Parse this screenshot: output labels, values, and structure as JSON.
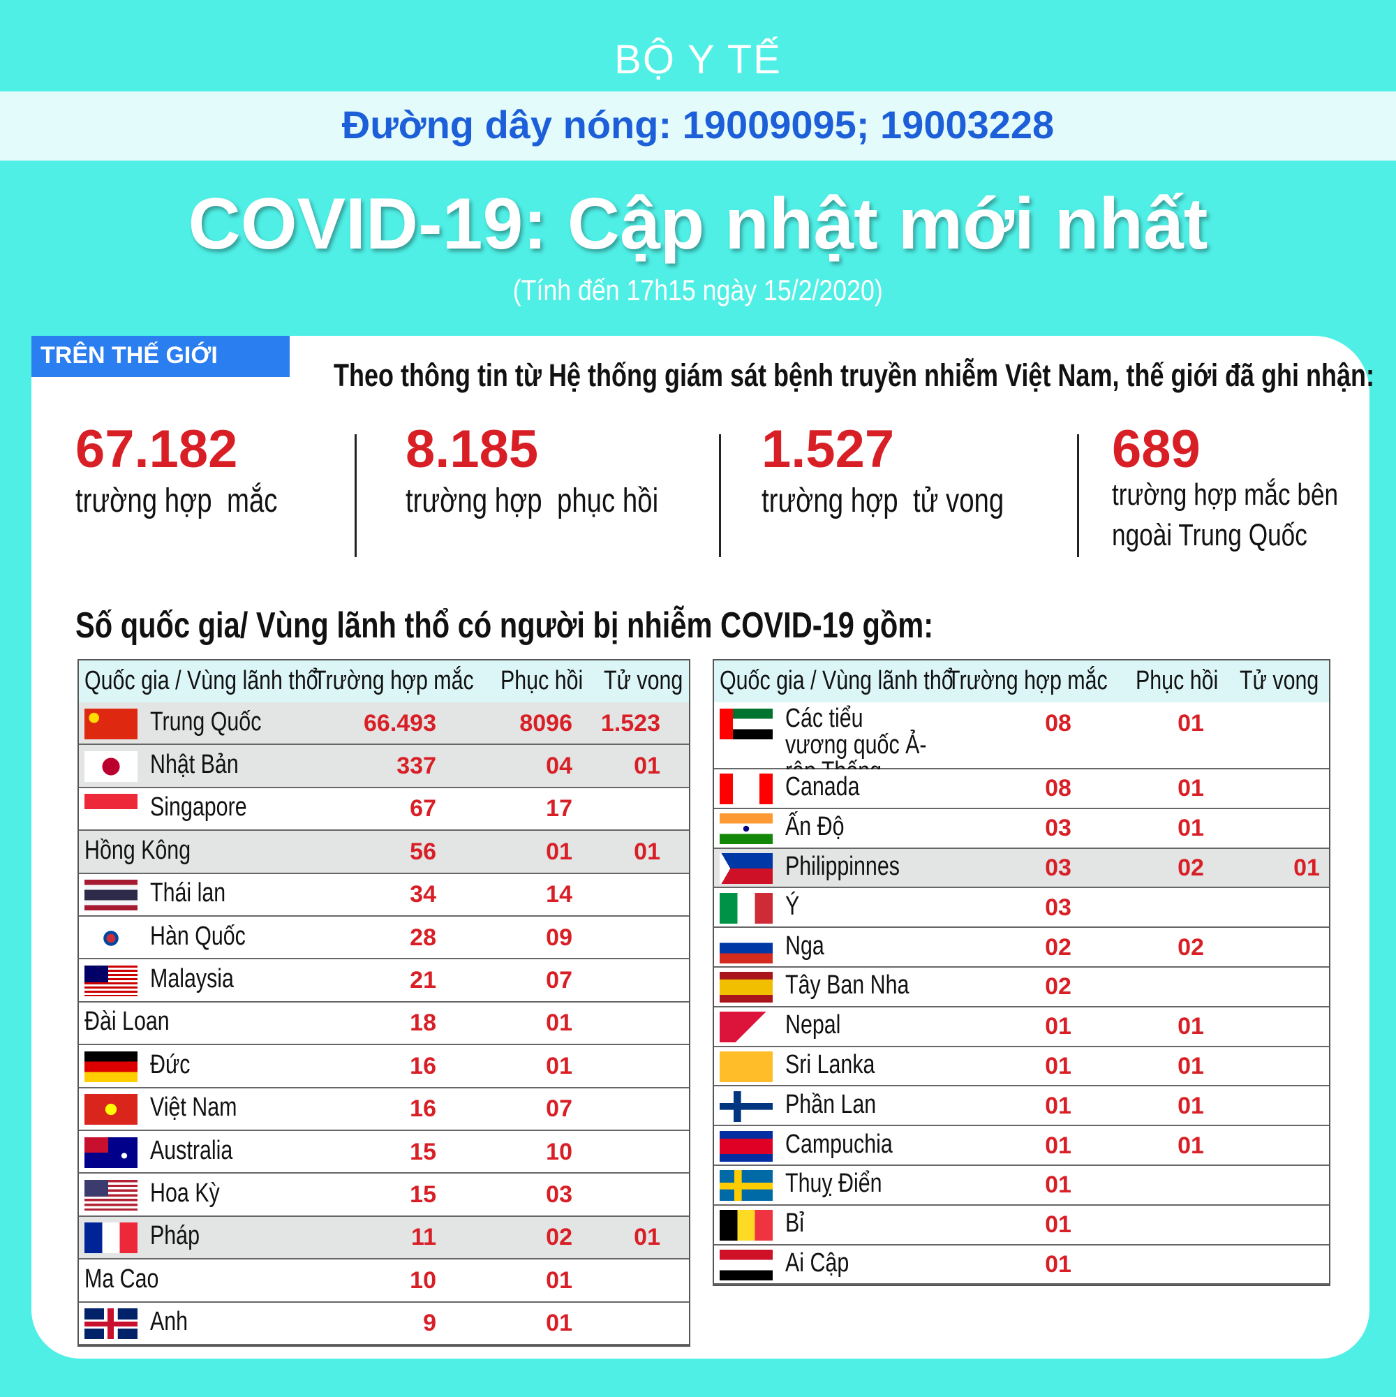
{
  "header": {
    "org": "BỘ Y TẾ",
    "hotline": "Đường dây nóng: 19009095; 19003228",
    "title": "COVID-19: Cập nhật mới nhất",
    "subtitle": "(Tính đến 17h15 ngày 15/2/2020)"
  },
  "world": {
    "tag": "TRÊN THẾ GIỚI",
    "intro": "Theo thông tin từ Hệ thống giám sát bệnh truyền nhiễm Việt Nam, thế giới đã ghi nhận:",
    "stats": [
      {
        "value": "67.182",
        "label": "trường hợp  mắc"
      },
      {
        "value": "8.185",
        "label": "trường hợp  phục hồi"
      },
      {
        "value": "1.527",
        "label": "trường hợp  tử vong"
      },
      {
        "value": "689",
        "label": "trường hợp mắc bên ngoài Trung Quốc"
      }
    ]
  },
  "countries": {
    "heading": "Số quốc gia/ Vùng lãnh thổ có người bị nhiễm COVID-19 gồm:",
    "columns": [
      "Quốc gia / Vùng lãnh thổ",
      "Trường hợp mắc",
      "Phục hồi",
      "Tử vong"
    ],
    "left_rows": [
      [
        "Trung Quốc",
        "66.493",
        "8096",
        "1.523"
      ],
      [
        "Nhật Bản",
        "337",
        "04",
        "01"
      ],
      [
        "Singapore",
        "67",
        "17",
        null
      ],
      [
        "Hồng Kông",
        "56",
        "01",
        "01"
      ],
      [
        "Thái lan",
        "34",
        "14",
        null
      ],
      [
        "Hàn Quốc",
        "28",
        "09",
        null
      ],
      [
        "Malaysia",
        "21",
        "07",
        null
      ],
      [
        "Đài Loan",
        "18",
        "01",
        null
      ],
      [
        "Đức",
        "16",
        "01",
        null
      ],
      [
        "Việt Nam",
        "16",
        "07",
        null
      ],
      [
        "Australia",
        "15",
        "10",
        null
      ],
      [
        "Hoa Kỳ",
        "15",
        "03",
        null
      ],
      [
        "Pháp",
        "11",
        "02",
        "01"
      ],
      [
        "Ma Cao",
        "10",
        "01",
        null
      ],
      [
        "Anh",
        "9",
        "01",
        null
      ]
    ],
    "right_rows": [
      [
        "Các tiểu vương quốc Ả-rập Thống Nhất",
        "08",
        "01",
        null
      ],
      [
        "Canada",
        "08",
        "01",
        null
      ],
      [
        "Ấn Độ",
        "03",
        "01",
        null
      ],
      [
        "Philippinnes",
        "03",
        "02",
        "01"
      ],
      [
        "Ý",
        "03",
        null,
        null
      ],
      [
        "Nga",
        "02",
        "02",
        null
      ],
      [
        "Tây Ban Nha",
        "02",
        null,
        null
      ],
      [
        "Nepal",
        "01",
        "01",
        null
      ],
      [
        "Sri Lanka",
        "01",
        "01",
        null
      ],
      [
        "Phần Lan",
        "01",
        "01",
        null
      ],
      [
        "Campuchia",
        "01",
        "01",
        null
      ],
      [
        "Thuỵ Điển",
        "01",
        null,
        null
      ],
      [
        "Bỉ",
        "01",
        null,
        null
      ],
      [
        "Ai Cập",
        "01",
        null,
        null
      ]
    ]
  }
}
